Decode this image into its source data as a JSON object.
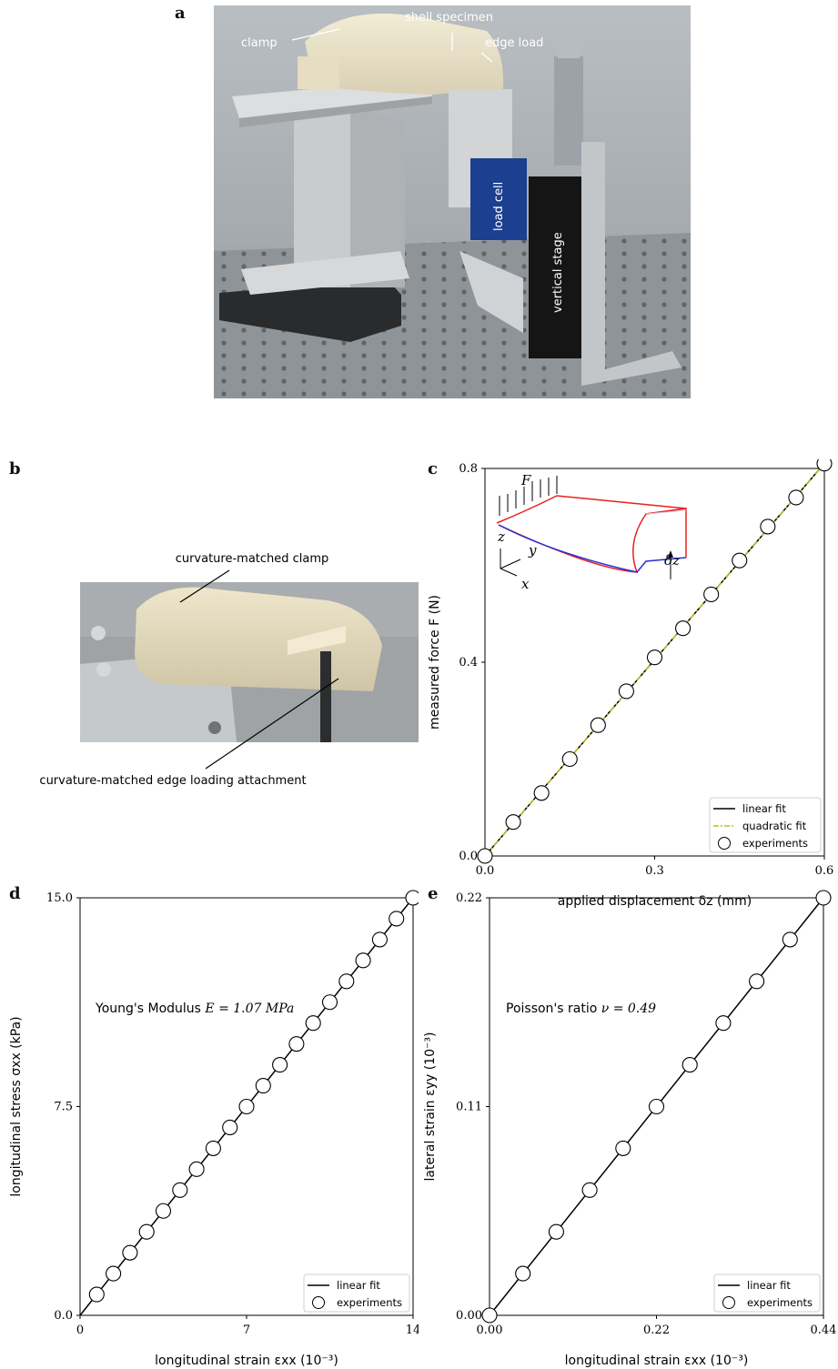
{
  "figure": {
    "panel_a": {
      "letter": "a",
      "labels": {
        "clamp": "clamp",
        "shell": "shell specimen",
        "edge_load": "edge load",
        "load_cell": "load cell",
        "vertical_stage": "vertical stage"
      }
    },
    "panel_b": {
      "letter": "b",
      "labels": {
        "clamp": "curvature-matched clamp",
        "edge": "curvature-matched edge loading attachment"
      }
    },
    "panel_c": {
      "letter": "c",
      "inset_labels": {
        "force": "F",
        "z": "z",
        "y": "y",
        "x": "x",
        "dz": "δz"
      }
    },
    "panel_d": {
      "letter": "d",
      "annotation_prefix": "Young's Modulus",
      "annotation_value": "E = 1.07 MPa"
    },
    "panel_e": {
      "letter": "e",
      "annotation_prefix": "Poisson's ratio",
      "annotation_value": "ν = 0.49"
    }
  },
  "colors": {
    "quadratic_fit": "#bcbd22",
    "inset_red": "#e8201e",
    "inset_blue": "#2430d8",
    "photo_grey": "#9aa0a6",
    "load_cell_blue": "#1c3f8f"
  },
  "chart_data": [
    {
      "type": "scatter",
      "panel": "c",
      "xlabel": "applied displacement δz (mm)",
      "ylabel": "measured force F (N)",
      "xlim": [
        0,
        0.6
      ],
      "ylim": [
        0,
        0.8
      ],
      "xticks": [
        "0.0",
        "0.3",
        "0.6"
      ],
      "yticks": [
        "0.0",
        "0.4",
        "0.8"
      ],
      "legend_position": "bottom-right",
      "legend": [
        "linear fit",
        "quadratic fit",
        "experiments"
      ],
      "x": [
        0.0,
        0.05,
        0.1,
        0.15,
        0.2,
        0.25,
        0.3,
        0.35,
        0.4,
        0.45,
        0.5,
        0.55,
        0.6
      ],
      "y": [
        0.0,
        0.07,
        0.13,
        0.2,
        0.27,
        0.34,
        0.41,
        0.47,
        0.54,
        0.61,
        0.68,
        0.74,
        0.81
      ],
      "fits": [
        {
          "name": "linear fit",
          "x": [
            0,
            0.6
          ],
          "y": [
            0,
            0.81
          ]
        },
        {
          "name": "quadratic fit",
          "x": [
            0,
            0.6
          ],
          "y": [
            0,
            0.81
          ]
        }
      ]
    },
    {
      "type": "scatter",
      "panel": "d",
      "xlabel": "longitudinal strain εxx (10⁻³)",
      "ylabel": "longitudinal stress σxx (kPa)",
      "xlim": [
        0,
        14
      ],
      "ylim": [
        0,
        15
      ],
      "xticks": [
        "0",
        "7",
        "14"
      ],
      "yticks": [
        "0.0",
        "7.5",
        "15.0"
      ],
      "legend_position": "bottom-right",
      "legend": [
        "linear fit",
        "experiments"
      ],
      "x": [
        0.7,
        1.4,
        2.1,
        2.8,
        3.5,
        4.2,
        4.9,
        5.6,
        6.3,
        7.0,
        7.7,
        8.4,
        9.1,
        9.8,
        10.5,
        11.2,
        11.9,
        12.6,
        13.3,
        14.0
      ],
      "y": [
        0.75,
        1.5,
        2.25,
        3.0,
        3.75,
        4.5,
        5.25,
        6.0,
        6.75,
        7.5,
        8.25,
        9.0,
        9.75,
        10.5,
        11.25,
        12.0,
        12.75,
        13.5,
        14.25,
        15.0
      ],
      "fits": [
        {
          "name": "linear fit",
          "x": [
            0,
            14
          ],
          "y": [
            0,
            15
          ]
        }
      ]
    },
    {
      "type": "scatter",
      "panel": "e",
      "xlabel": "longitudinal strain εxx (10⁻³)",
      "ylabel": "lateral strain εyy (10⁻³)",
      "xlim": [
        0,
        0.44
      ],
      "ylim": [
        0,
        0.22
      ],
      "xticks": [
        "0.00",
        "0.22",
        "0.44"
      ],
      "yticks": [
        "0.00",
        "0.11",
        "0.22"
      ],
      "legend_position": "bottom-right",
      "legend": [
        "linear fit",
        "experiments"
      ],
      "x": [
        0.0,
        0.044,
        0.088,
        0.132,
        0.176,
        0.22,
        0.264,
        0.308,
        0.352,
        0.396,
        0.44
      ],
      "y": [
        0.0,
        0.022,
        0.044,
        0.066,
        0.088,
        0.11,
        0.132,
        0.154,
        0.176,
        0.198,
        0.22
      ],
      "fits": [
        {
          "name": "linear fit",
          "x": [
            0,
            0.44
          ],
          "y": [
            0,
            0.22
          ]
        }
      ]
    }
  ]
}
